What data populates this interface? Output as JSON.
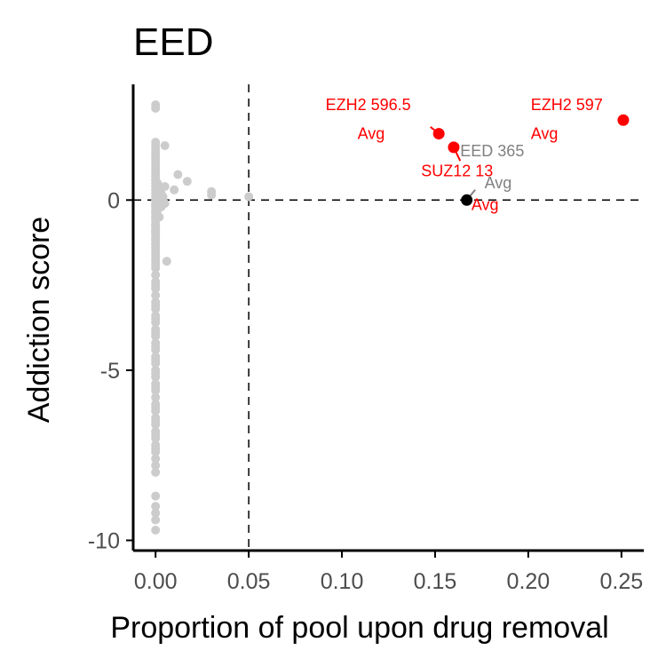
{
  "chart_data": {
    "type": "scatter",
    "title": "EED",
    "xlabel": "Proportion of pool upon drug removal",
    "ylabel": "Addiction score",
    "xlim": [
      -0.012,
      0.262
    ],
    "ylim": [
      -10.3,
      3.4
    ],
    "xticks": [
      0.0,
      0.05,
      0.1,
      0.15,
      0.2,
      0.25
    ],
    "xtick_labels": [
      "0.00",
      "0.05",
      "0.10",
      "0.15",
      "0.20",
      "0.25"
    ],
    "yticks": [
      -10,
      -5,
      0
    ],
    "ytick_labels": [
      "-10",
      "-5",
      "0"
    ],
    "reference_lines": {
      "x": 0.05,
      "y": 0
    },
    "grid": false,
    "legend": "none",
    "colors": {
      "background_points": "#cccccc",
      "highlight": "#ff0000",
      "neutral": "#000000",
      "label_gray": "#808080",
      "ref_line": "#000000"
    },
    "background_points": {
      "x": [
        0.0,
        0.0,
        0.0,
        0.0,
        0.0,
        0.0,
        0.0,
        0.0,
        0.0,
        0.0,
        0.0,
        0.0,
        0.0,
        0.0,
        0.0,
        0.0,
        0.0,
        0.0,
        0.0,
        0.0,
        0.0,
        0.0,
        0.0,
        0.0,
        0.0,
        0.0,
        0.0,
        0.0,
        0.0,
        0.0,
        0.0,
        0.0,
        0.0,
        0.0,
        0.0,
        0.0,
        0.0,
        0.0,
        0.0,
        0.0,
        0.0,
        0.0,
        0.0,
        0.0,
        0.0,
        0.0,
        0.0,
        0.0,
        0.0,
        0.0,
        0.0,
        0.0,
        0.0,
        0.0,
        0.0,
        0.0,
        0.0,
        0.0,
        0.0,
        0.0,
        0.0,
        0.0,
        0.0,
        0.0,
        0.0,
        0.0,
        0.0,
        0.0,
        0.0,
        0.0,
        0.0,
        0.0,
        0.0,
        0.0,
        0.0,
        0.0,
        0.0,
        0.0,
        0.0,
        0.0,
        0.0,
        0.0,
        0.0,
        0.0,
        0.0,
        0.0,
        0.0,
        0.0,
        0.0,
        0.0,
        0.0,
        0.0,
        0.0,
        0.0,
        0.0,
        0.001,
        0.001,
        0.001,
        0.002,
        0.002,
        0.003,
        0.003,
        0.003,
        0.004,
        0.005,
        0.005,
        0.006,
        0.005,
        0.01,
        0.012,
        0.017,
        0.03,
        0.03,
        0.05
      ],
      "y": [
        2.8,
        2.7,
        1.7,
        1.6,
        1.5,
        1.4,
        1.3,
        1.2,
        1.1,
        1.0,
        0.9,
        0.8,
        0.7,
        0.6,
        0.5,
        0.4,
        0.3,
        0.2,
        0.1,
        0.0,
        -0.1,
        -0.2,
        -0.3,
        -0.4,
        -0.5,
        -0.6,
        -0.7,
        -0.8,
        -0.9,
        -1.0,
        -1.1,
        -1.2,
        -1.3,
        -1.4,
        -1.5,
        -1.6,
        -1.7,
        -1.8,
        -1.9,
        -2.0,
        -2.2,
        -2.4,
        -2.6,
        -2.8,
        -3.0,
        -3.2,
        -3.4,
        -3.6,
        -3.8,
        -4.0,
        -4.2,
        -4.4,
        -4.6,
        -4.8,
        -5.0,
        -5.2,
        -5.4,
        -5.6,
        -5.8,
        -6.0,
        -6.2,
        -6.4,
        -6.6,
        -6.8,
        -7.0,
        -7.2,
        -7.6,
        -7.8,
        -8.0,
        -8.7,
        -9.0,
        -9.2,
        -9.4,
        -9.7,
        -0.9,
        -1.3,
        -2.5,
        -3.1,
        -3.5,
        -3.9,
        -4.3,
        -4.7,
        -5.1,
        -5.5,
        -6.1,
        -6.5,
        -6.9,
        -7.3,
        -7.4,
        -0.15,
        -0.35,
        -0.55,
        -0.75,
        -0.95,
        -1.15,
        0.5,
        0.15,
        -0.3,
        0.3,
        -0.5,
        0.2,
        0.0,
        -0.2,
        0.1,
        0.4,
        -0.1,
        -1.8,
        1.6,
        0.3,
        0.75,
        0.55,
        0.25,
        0.15,
        0.1
      ]
    },
    "highlight_points": [
      {
        "x": 0.152,
        "y": 1.95,
        "color": "#ff0000"
      },
      {
        "x": 0.16,
        "y": 1.55,
        "color": "#ff0000"
      },
      {
        "x": 0.251,
        "y": 2.35,
        "color": "#ff0000"
      },
      {
        "x": 0.167,
        "y": 0.0,
        "color": "#000000"
      }
    ],
    "annotations": [
      {
        "text": "EZH2 596.5",
        "color": "#ff0000"
      },
      {
        "text": "Avg",
        "color": "#ff0000"
      },
      {
        "text": "EZH2 597",
        "color": "#ff0000"
      },
      {
        "text": "Avg",
        "color": "#ff0000"
      },
      {
        "text": "EED 365",
        "color": "#808080"
      },
      {
        "text": "SUZ12 13",
        "color": "#ff0000"
      },
      {
        "text": "Avg",
        "color": "#808080"
      },
      {
        "text": "Avg",
        "color": "#ff0000"
      }
    ]
  }
}
